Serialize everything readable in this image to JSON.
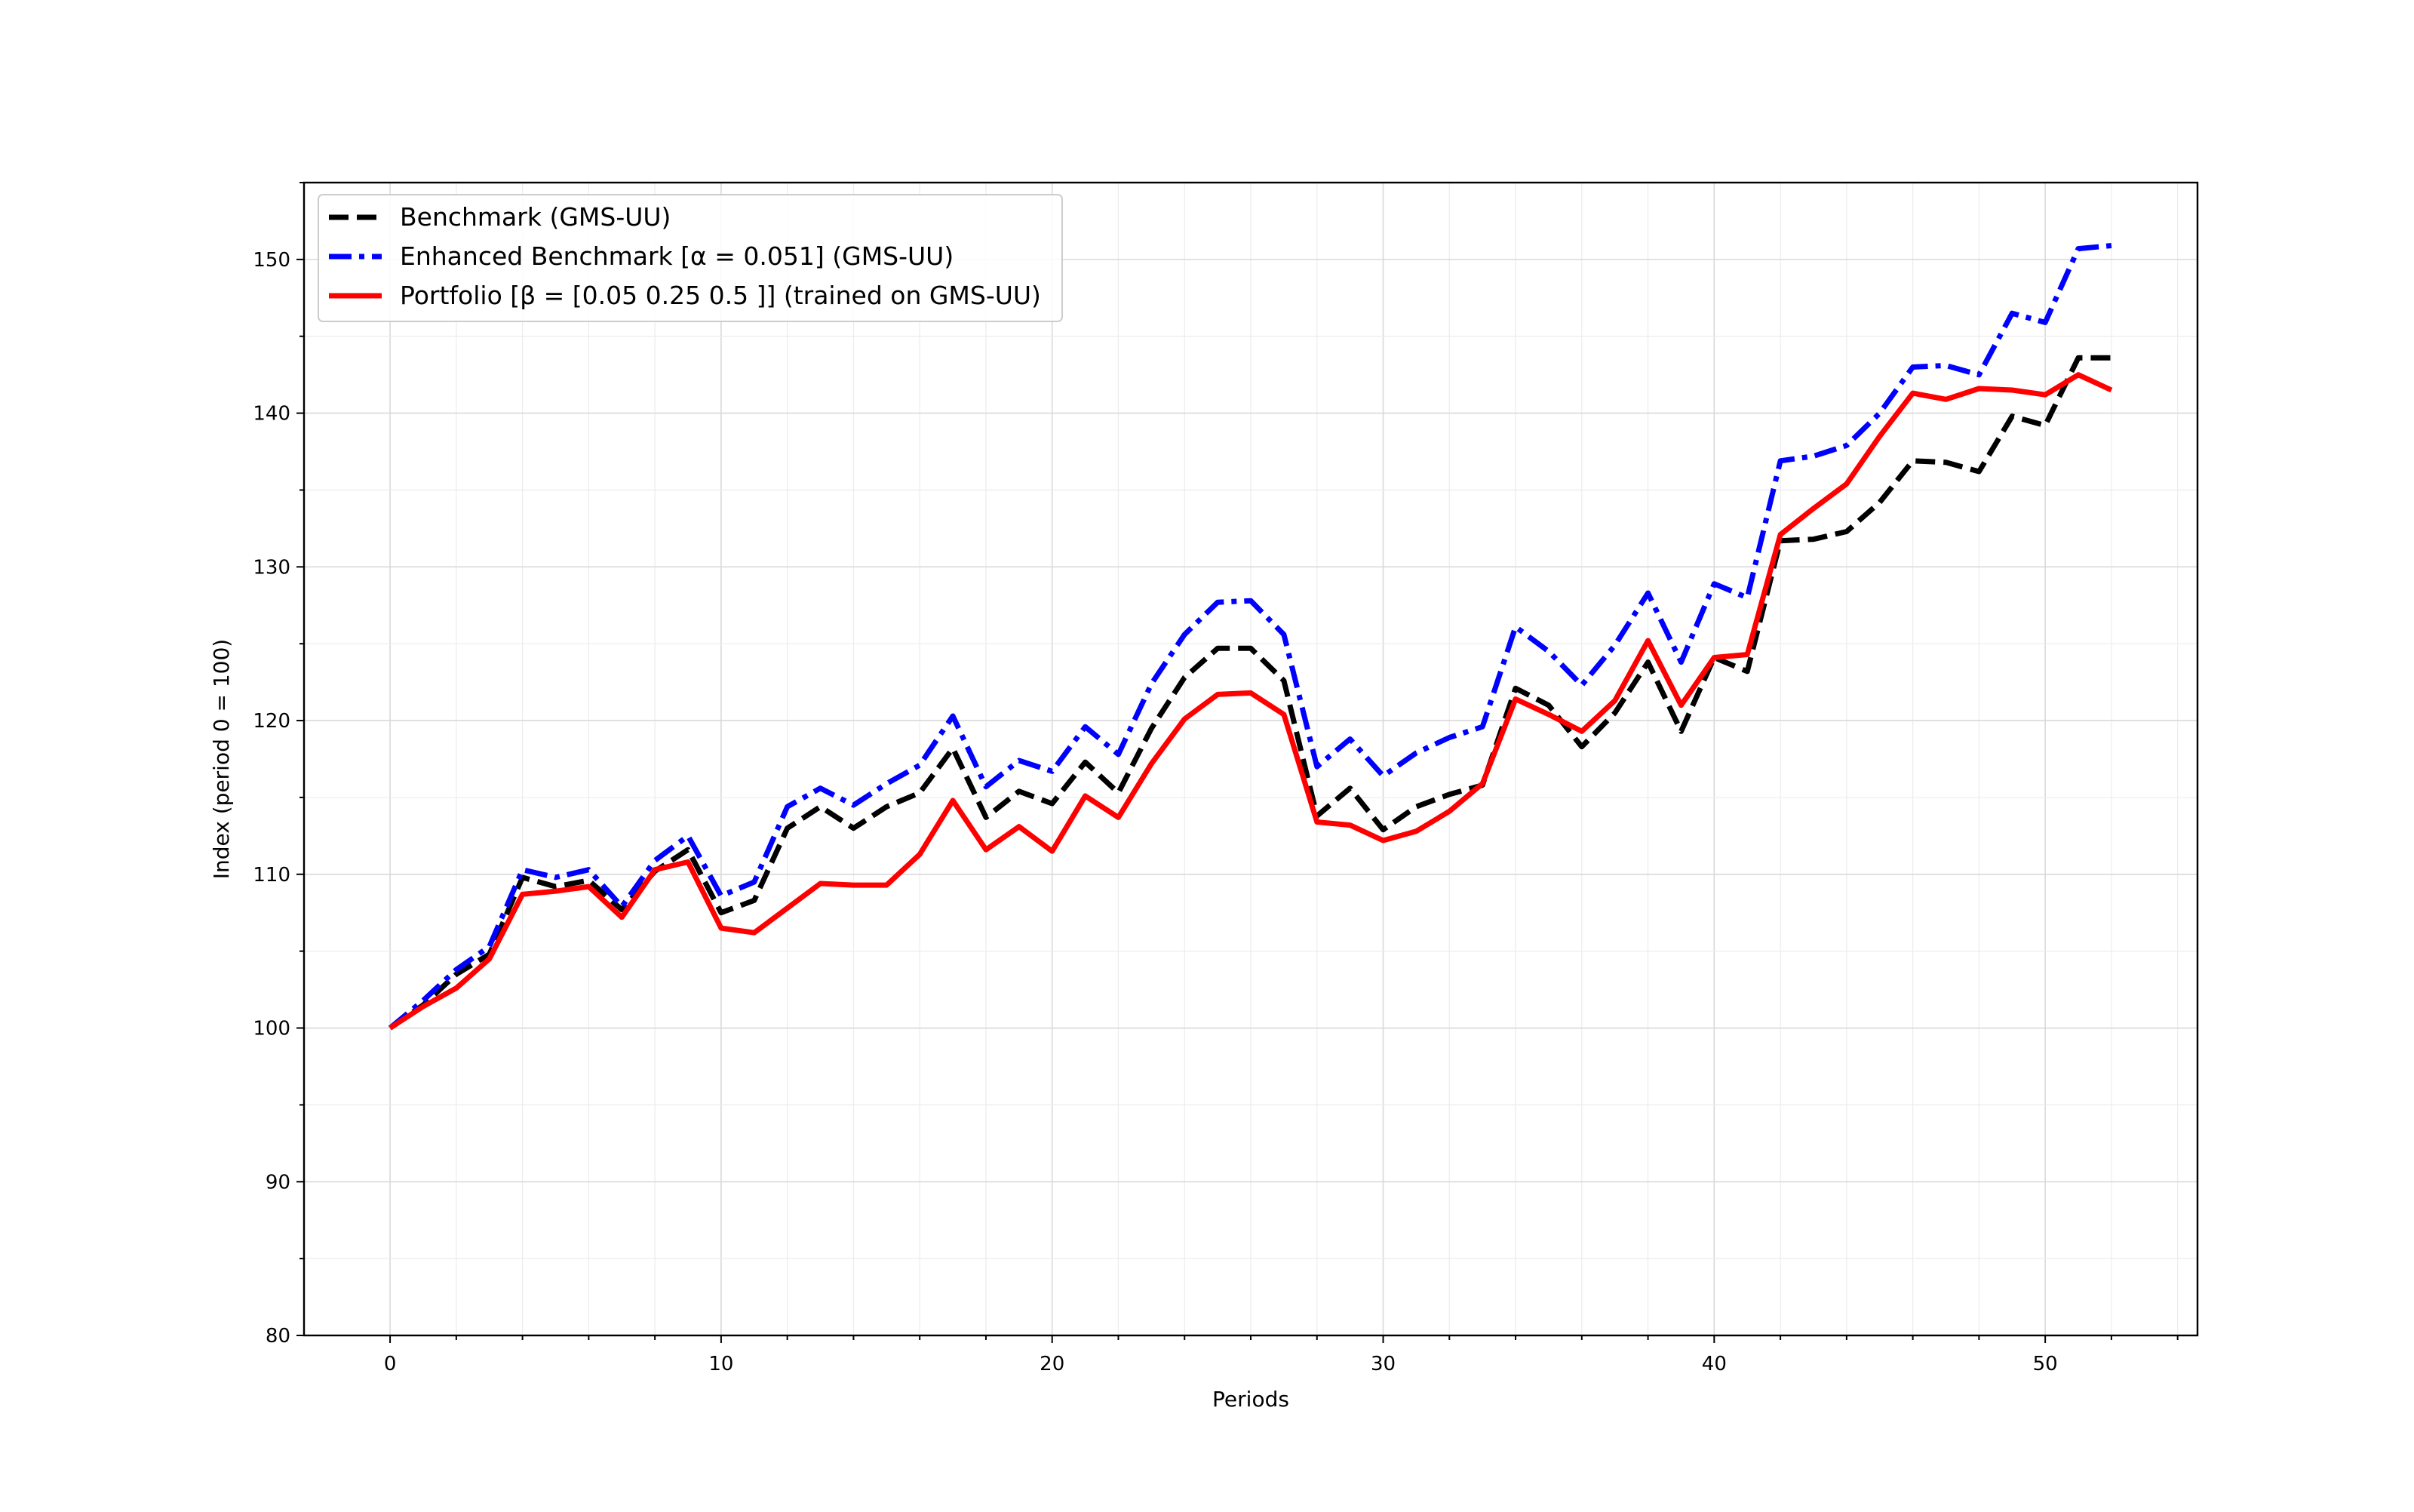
{
  "chart_data": {
    "type": "line",
    "xlabel": "Periods",
    "ylabel": "Index (period 0 = 100)",
    "xlim": [
      -2.6,
      54.6
    ],
    "ylim": [
      80,
      155
    ],
    "x_ticks": [
      0,
      10,
      20,
      30,
      40,
      50
    ],
    "y_ticks": [
      80,
      90,
      100,
      110,
      120,
      130,
      140,
      150
    ],
    "grid": true,
    "legend_position": "top-left",
    "x": [
      0,
      1,
      2,
      3,
      4,
      5,
      6,
      7,
      8,
      9,
      10,
      11,
      12,
      13,
      14,
      15,
      16,
      17,
      18,
      19,
      20,
      21,
      22,
      23,
      24,
      25,
      26,
      27,
      28,
      29,
      30,
      31,
      32,
      33,
      34,
      35,
      36,
      37,
      38,
      39,
      40,
      41,
      42,
      43,
      44,
      45,
      46,
      47,
      48,
      49,
      50,
      51,
      52
    ],
    "series": [
      {
        "name": "Benchmark (GMS-UU)",
        "color": "#000000",
        "style": "dashed",
        "values": [
          100,
          101.5,
          103.5,
          104.8,
          109.8,
          109.2,
          109.6,
          107.7,
          110.2,
          111.6,
          107.5,
          108.3,
          113.0,
          114.4,
          113.0,
          114.4,
          115.3,
          118.2,
          113.7,
          115.4,
          114.6,
          117.3,
          115.3,
          119.5,
          122.8,
          124.7,
          124.7,
          122.6,
          113.8,
          115.6,
          112.9,
          114.4,
          115.2,
          115.8,
          122.1,
          121.0,
          118.3,
          120.5,
          123.8,
          119.3,
          124.1,
          123.2,
          131.7,
          131.8,
          132.3,
          134.2,
          136.9,
          136.8,
          136.2,
          139.8,
          139.2,
          143.6,
          143.6
        ]
      },
      {
        "name": "Enhanced Benchmark [α = 0.051] (GMS-UU)",
        "color": "#0000ff",
        "style": "dashdot",
        "values": [
          100,
          101.8,
          103.8,
          105.3,
          110.3,
          109.8,
          110.3,
          107.9,
          110.9,
          112.5,
          108.6,
          109.5,
          114.4,
          115.6,
          114.5,
          115.9,
          117.1,
          120.3,
          115.7,
          117.4,
          116.7,
          119.6,
          117.8,
          122.4,
          125.6,
          127.7,
          127.8,
          125.6,
          117.0,
          118.8,
          116.4,
          117.9,
          118.9,
          119.6,
          126.1,
          124.5,
          122.3,
          124.9,
          128.3,
          123.8,
          128.9,
          128.0,
          136.9,
          137.2,
          137.9,
          140.0,
          143.0,
          143.1,
          142.5,
          146.5,
          145.9,
          150.7,
          150.9
        ]
      },
      {
        "name": "Portfolio [β = [0.05 0.25 0.5 ]] (trained on GMS-UU)",
        "color": "#ff0000",
        "style": "solid",
        "values": [
          100,
          101.4,
          102.6,
          104.5,
          108.7,
          108.9,
          109.2,
          107.2,
          110.3,
          110.8,
          106.5,
          106.2,
          107.8,
          109.4,
          109.3,
          109.3,
          111.3,
          114.8,
          111.6,
          113.1,
          111.5,
          115.1,
          113.7,
          117.2,
          120.1,
          121.7,
          121.8,
          120.4,
          113.4,
          113.2,
          112.2,
          112.8,
          114.1,
          115.9,
          121.4,
          120.4,
          119.3,
          121.3,
          125.2,
          121.0,
          124.1,
          124.3,
          132.1,
          133.8,
          135.4,
          138.5,
          141.3,
          140.9,
          141.6,
          141.5,
          141.2,
          142.5,
          141.5
        ]
      }
    ]
  }
}
